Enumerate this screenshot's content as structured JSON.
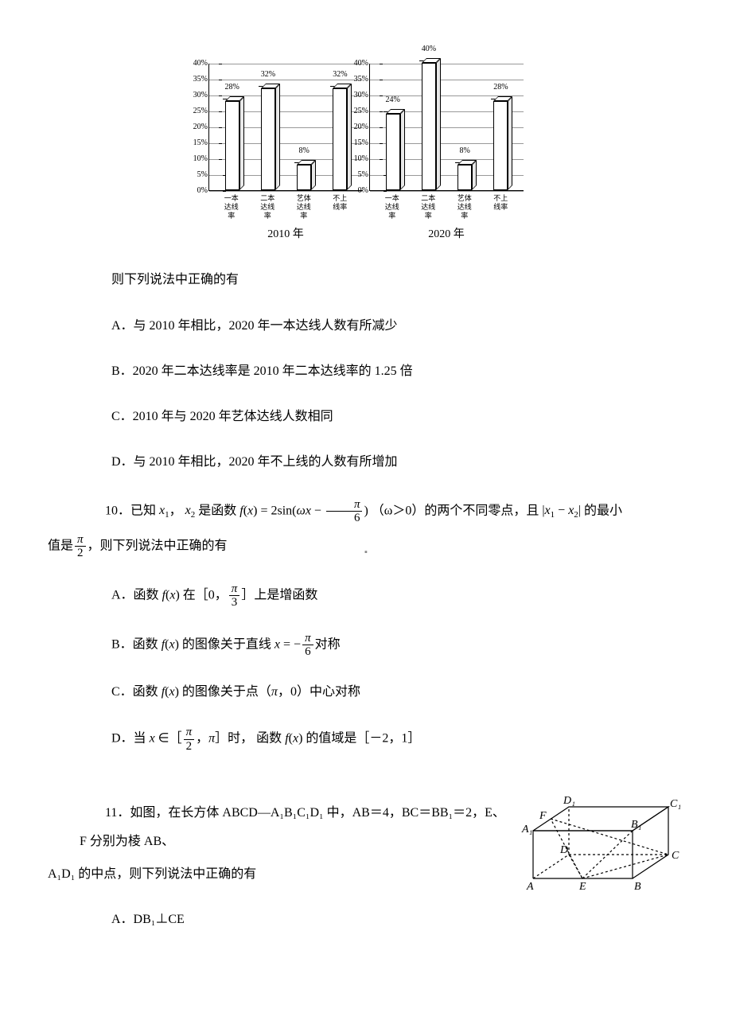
{
  "charts": {
    "y_ticks": [
      "0%",
      "5%",
      "10%",
      "15%",
      "20%",
      "25%",
      "30%",
      "35%",
      "40%"
    ],
    "y_max": 40,
    "x_labels": [
      "一本\n达线率",
      "二本\n达线率",
      "艺体\n达线率",
      "不上线率"
    ],
    "chart_2010": {
      "title": "2010 年",
      "values": [
        28,
        32,
        8,
        32
      ],
      "labels": [
        "28%",
        "32%",
        "8%",
        "32%"
      ]
    },
    "chart_2020": {
      "title": "2020 年",
      "values": [
        24,
        40,
        8,
        28
      ],
      "labels": [
        "24%",
        "40%",
        "8%",
        "28%"
      ]
    },
    "bar_border": "#000000",
    "bar_fill": "#ffffff",
    "grid_color": "#999999"
  },
  "q_intro": "则下列说法中正确的有",
  "options_9": {
    "A": "A．与 2010 年相比，2020 年一本达线人数有所减少",
    "B": "B．2020 年二本达线率是 2010 年二本达线率的 1.25 倍",
    "C": "C．2010 年与 2020 年艺体达线人数相同",
    "D": "D．与 2010 年相比，2020 年不上线的人数有所增加"
  },
  "q10": {
    "prefix": "10．已知",
    "x1": "x",
    "x1sub": "1",
    "comma": "，",
    "x2": "x",
    "x2sub": "2",
    "mid1": "是函数",
    "fx": "f(x) = 2sin(ωx − ",
    "frac1_num": "π",
    "frac1_den": "6",
    "close1": ")",
    "cond": "（ω＞0）的两个不同零点，且",
    "abs": "|x₁ − x₂|",
    "mid2": "的最小",
    "line2_prefix": "值是",
    "frac2_num": "π",
    "frac2_den": "2",
    "line2_suffix": "，则下列说法中正确的有"
  },
  "options_10": {
    "A_pre": "A．函数",
    "A_fx": "f(x)",
    "A_mid": "在［0，",
    "A_frac_num": "π",
    "A_frac_den": "3",
    "A_post": "］上是增函数",
    "B_pre": "B．函数",
    "B_fx": "f(x)",
    "B_mid": "的图像关于直线",
    "B_x": "x = −",
    "B_frac_num": "π",
    "B_frac_den": "6",
    "B_post": "对称",
    "C_pre": "C．函数",
    "C_fx": "f(x)",
    "C_mid": "的图像关于点（",
    "C_pi": "π",
    "C_post": "，0）中心对称",
    "D_pre": "D．当",
    "D_x": "x ∈［",
    "D_frac_num": "π",
    "D_frac_den": "2",
    "D_mid": "，",
    "D_pi": "π",
    "D_mid2": "］时， 函数",
    "D_fx": "f(x)",
    "D_post": "的值域是［－2，1］"
  },
  "q11": {
    "text1": "11．如图，在长方体 ABCD—A₁B₁C₁D₁ 中，AB＝4，BC＝BB₁＝2，E、F 分别为棱 AB、",
    "text2": "A₁D₁ 的中点，则下列说法中正确的有",
    "optA": "A．DB₁⊥CE",
    "labels": {
      "A": "A",
      "B": "B",
      "C": "C",
      "D": "D",
      "A1": "A₁",
      "B1": "B₁",
      "C1": "C₁",
      "D1": "D₁",
      "E": "E",
      "F": "F"
    }
  }
}
